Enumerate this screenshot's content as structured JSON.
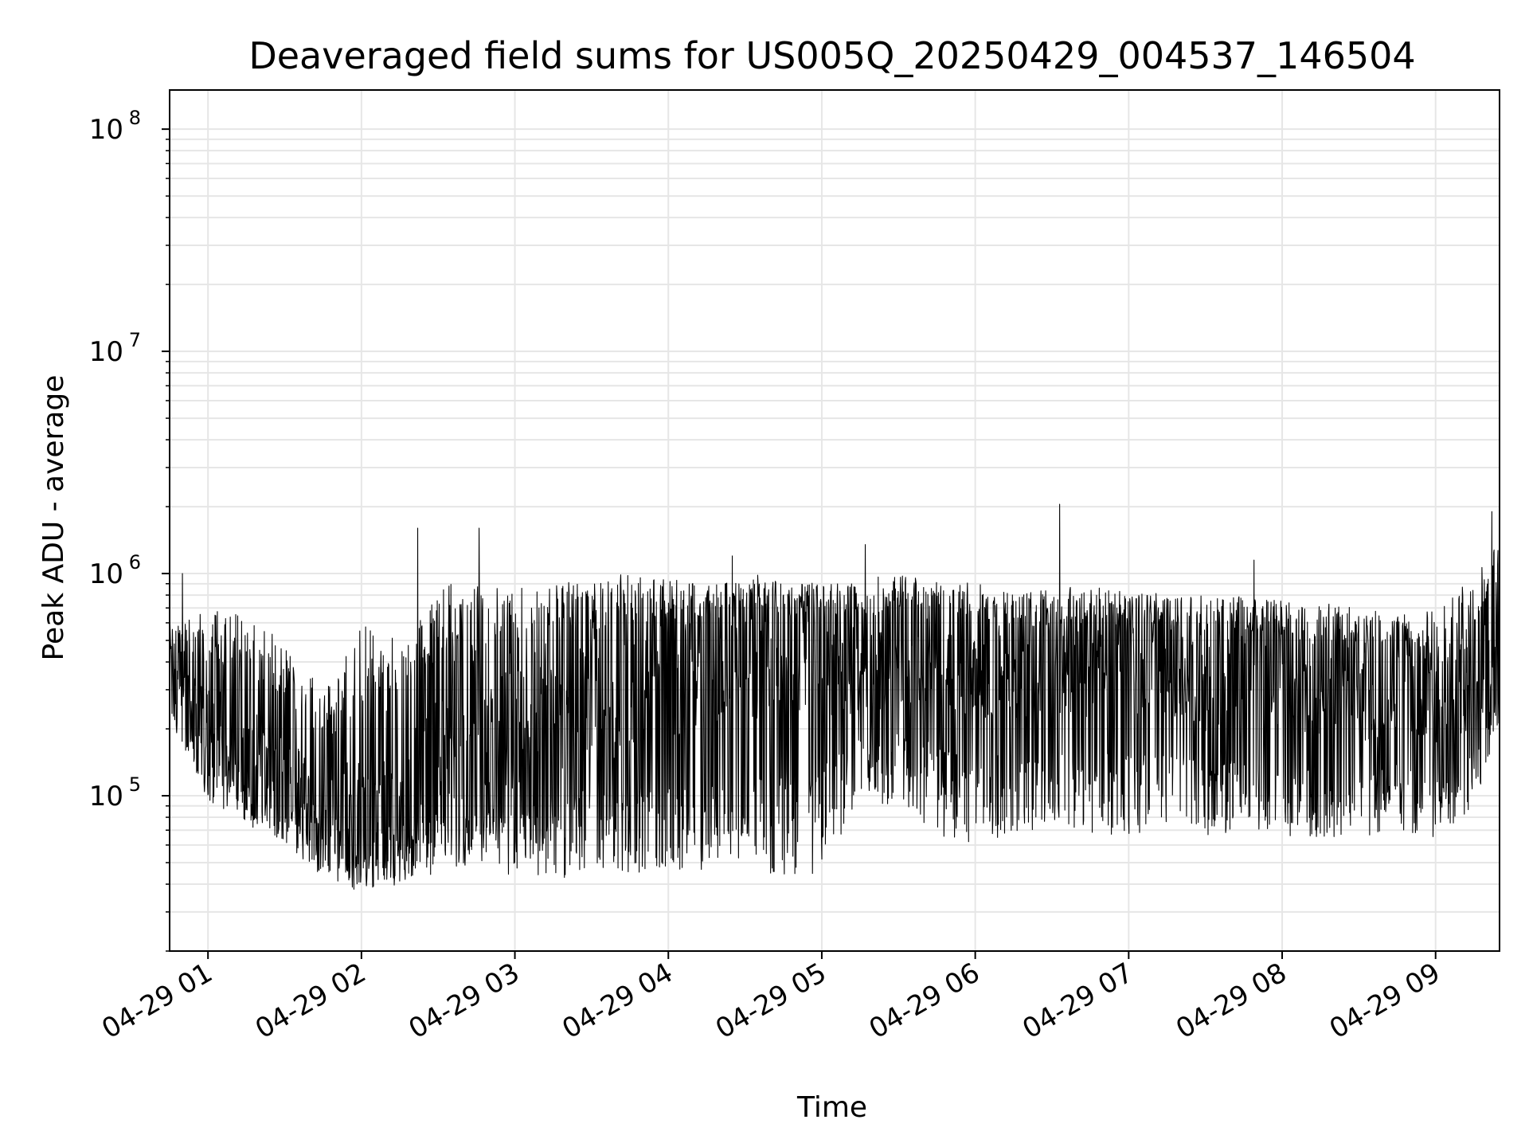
{
  "chart_data": {
    "type": "line",
    "title": "Deaveraged field sums for US005Q_20250429_004537_146504",
    "xlabel": "Time",
    "ylabel": "Peak ADU - average",
    "y_scale": "log",
    "ylim": [
      20000,
      150000000
    ],
    "xlim": [
      "2025-04-29 00:45",
      "2025-04-29 09:25"
    ],
    "x_tick_labels": [
      "04-29 01",
      "04-29 02",
      "04-29 03",
      "04-29 04",
      "04-29 05",
      "04-29 06",
      "04-29 07",
      "04-29 08",
      "04-29 09"
    ],
    "y_tick_labels": [
      {
        "base": "10",
        "exp": "5"
      },
      {
        "base": "10",
        "exp": "6"
      },
      {
        "base": "10",
        "exp": "7"
      },
      {
        "base": "10",
        "exp": "8"
      }
    ],
    "grid": true,
    "line_color": "#000000",
    "grid_color": "#e6e6e6",
    "series": [
      {
        "x": [
          "2025-04-29 00:45",
          "2025-04-29 01:00",
          "2025-04-29 01:15",
          "2025-04-29 01:30",
          "2025-04-29 01:45",
          "2025-04-29 02:00",
          "2025-04-29 02:15",
          "2025-04-29 02:30",
          "2025-04-29 02:45",
          "2025-04-29 03:00",
          "2025-04-29 03:15",
          "2025-04-29 03:30",
          "2025-04-29 03:45",
          "2025-04-29 04:00",
          "2025-04-29 04:15",
          "2025-04-29 04:30",
          "2025-04-29 04:45",
          "2025-04-29 05:00",
          "2025-04-29 05:15",
          "2025-04-29 05:30",
          "2025-04-29 05:45",
          "2025-04-29 06:00",
          "2025-04-29 06:15",
          "2025-04-29 06:30",
          "2025-04-29 06:45",
          "2025-04-29 07:00",
          "2025-04-29 07:15",
          "2025-04-29 07:30",
          "2025-04-29 07:45",
          "2025-04-29 08:00",
          "2025-04-29 08:15",
          "2025-04-29 08:30",
          "2025-04-29 08:45",
          "2025-04-29 09:00",
          "2025-04-29 09:15",
          "2025-04-29 09:25"
        ],
        "upper": [
          600000,
          700000,
          650000,
          500000,
          300000,
          600000,
          500000,
          900000,
          900000,
          850000,
          900000,
          950000,
          1000000,
          950000,
          900000,
          1000000,
          950000,
          900000,
          950000,
          1000000,
          950000,
          900000,
          850000,
          850000,
          900000,
          850000,
          800000,
          800000,
          800000,
          750000,
          750000,
          700000,
          650000,
          700000,
          1000000,
          1500000
        ],
        "typical": [
          300000,
          200000,
          180000,
          120000,
          90000,
          80000,
          90000,
          150000,
          150000,
          200000,
          250000,
          300000,
          300000,
          350000,
          400000,
          450000,
          450000,
          450000,
          400000,
          450000,
          500000,
          400000,
          400000,
          400000,
          400000,
          400000,
          380000,
          350000,
          350000,
          350000,
          300000,
          300000,
          300000,
          280000,
          350000,
          500000
        ],
        "lower": [
          200000,
          90000,
          70000,
          60000,
          40000,
          35000,
          38000,
          40000,
          45000,
          40000,
          38000,
          40000,
          40000,
          40000,
          40000,
          40000,
          38000,
          40000,
          90000,
          80000,
          60000,
          55000,
          60000,
          65000,
          60000,
          60000,
          65000,
          60000,
          65000,
          60000,
          60000,
          60000,
          65000,
          60000,
          80000,
          200000
        ],
        "spikes": [
          {
            "x": "2025-04-29 00:50",
            "y": 1000000
          },
          {
            "x": "2025-04-29 02:22",
            "y": 1600000
          },
          {
            "x": "2025-04-29 02:46",
            "y": 1600000
          },
          {
            "x": "2025-04-29 04:25",
            "y": 1200000
          },
          {
            "x": "2025-04-29 05:17",
            "y": 1350000
          },
          {
            "x": "2025-04-29 06:33",
            "y": 2050000
          },
          {
            "x": "2025-04-29 07:49",
            "y": 1150000
          },
          {
            "x": "2025-04-29 09:22",
            "y": 1900000
          }
        ]
      }
    ]
  }
}
